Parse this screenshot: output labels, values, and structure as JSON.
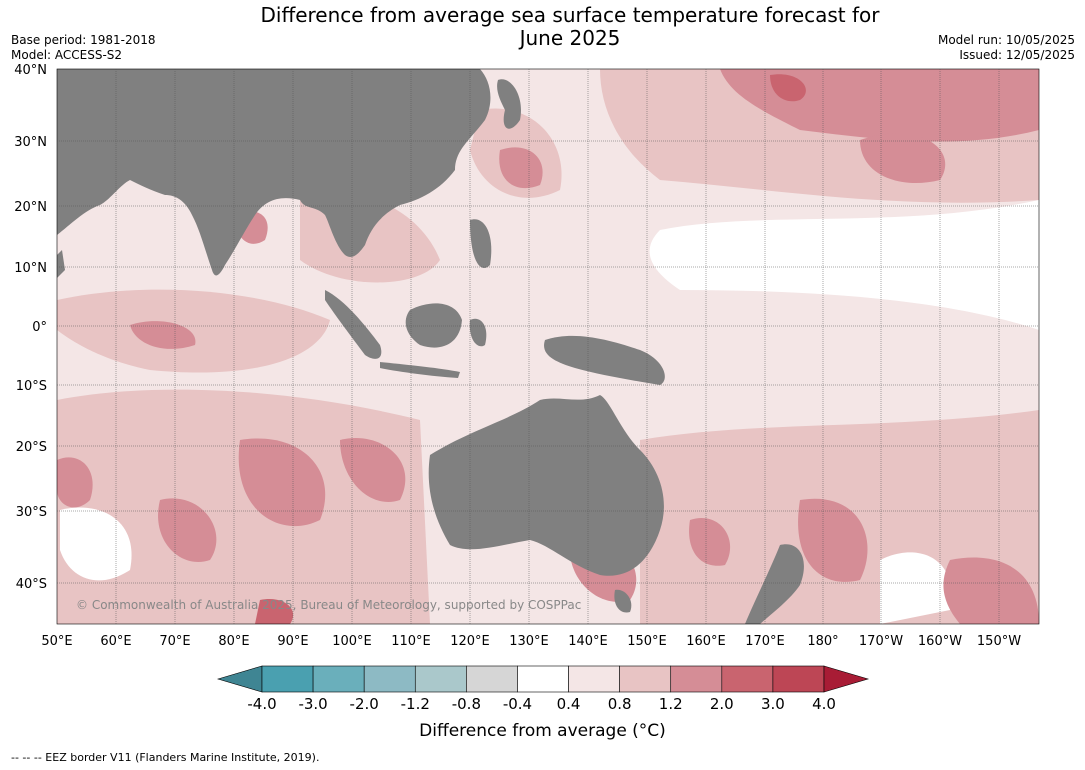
{
  "title_line1": "Difference from average sea surface temperature forecast for",
  "title_line2": "June 2025",
  "base_period": "Base period: 1981-2018",
  "model": "Model: ACCESS-S2",
  "model_run": "Model run: 10/05/2025",
  "issued": "Issued: 12/05/2025",
  "lat_labels": [
    "40°N",
    "30°N",
    "20°N",
    "10°N",
    "0°",
    "10°S",
    "20°S",
    "30°S",
    "40°S"
  ],
  "lon_labels": [
    "50°E",
    "60°E",
    "70°E",
    "80°E",
    "90°E",
    "100°E",
    "110°E",
    "120°E",
    "130°E",
    "140°E",
    "150°E",
    "160°E",
    "170°E",
    "180°",
    "170°W",
    "160°W",
    "150°W"
  ],
  "copyright": "© Commonwealth of Australia 2025, Bureau of Meteorology, supported by COSPPac",
  "colorbar": {
    "ticks": [
      "-4.0",
      "-3.0",
      "-2.0",
      "-1.2",
      "-0.8",
      "-0.4",
      "0.4",
      "0.8",
      "1.2",
      "2.0",
      "3.0",
      "4.0"
    ],
    "colors": [
      "#3f8593",
      "#4aa0b0",
      "#6aafbb",
      "#8dbac4",
      "#aac8cb",
      "#d6d6d6",
      "#ffffff",
      "#f4e6e6",
      "#e8c4c4",
      "#d58d96",
      "#c9646f",
      "#bd4655",
      "#a81c35"
    ],
    "label": "Difference from average ($^\\circ$C)",
    "label_display": "Difference from average (°C)"
  },
  "footer": "--  --  -- EEZ border V11 (Flanders Marine Institute, 2019).",
  "land_color": "#808080"
}
